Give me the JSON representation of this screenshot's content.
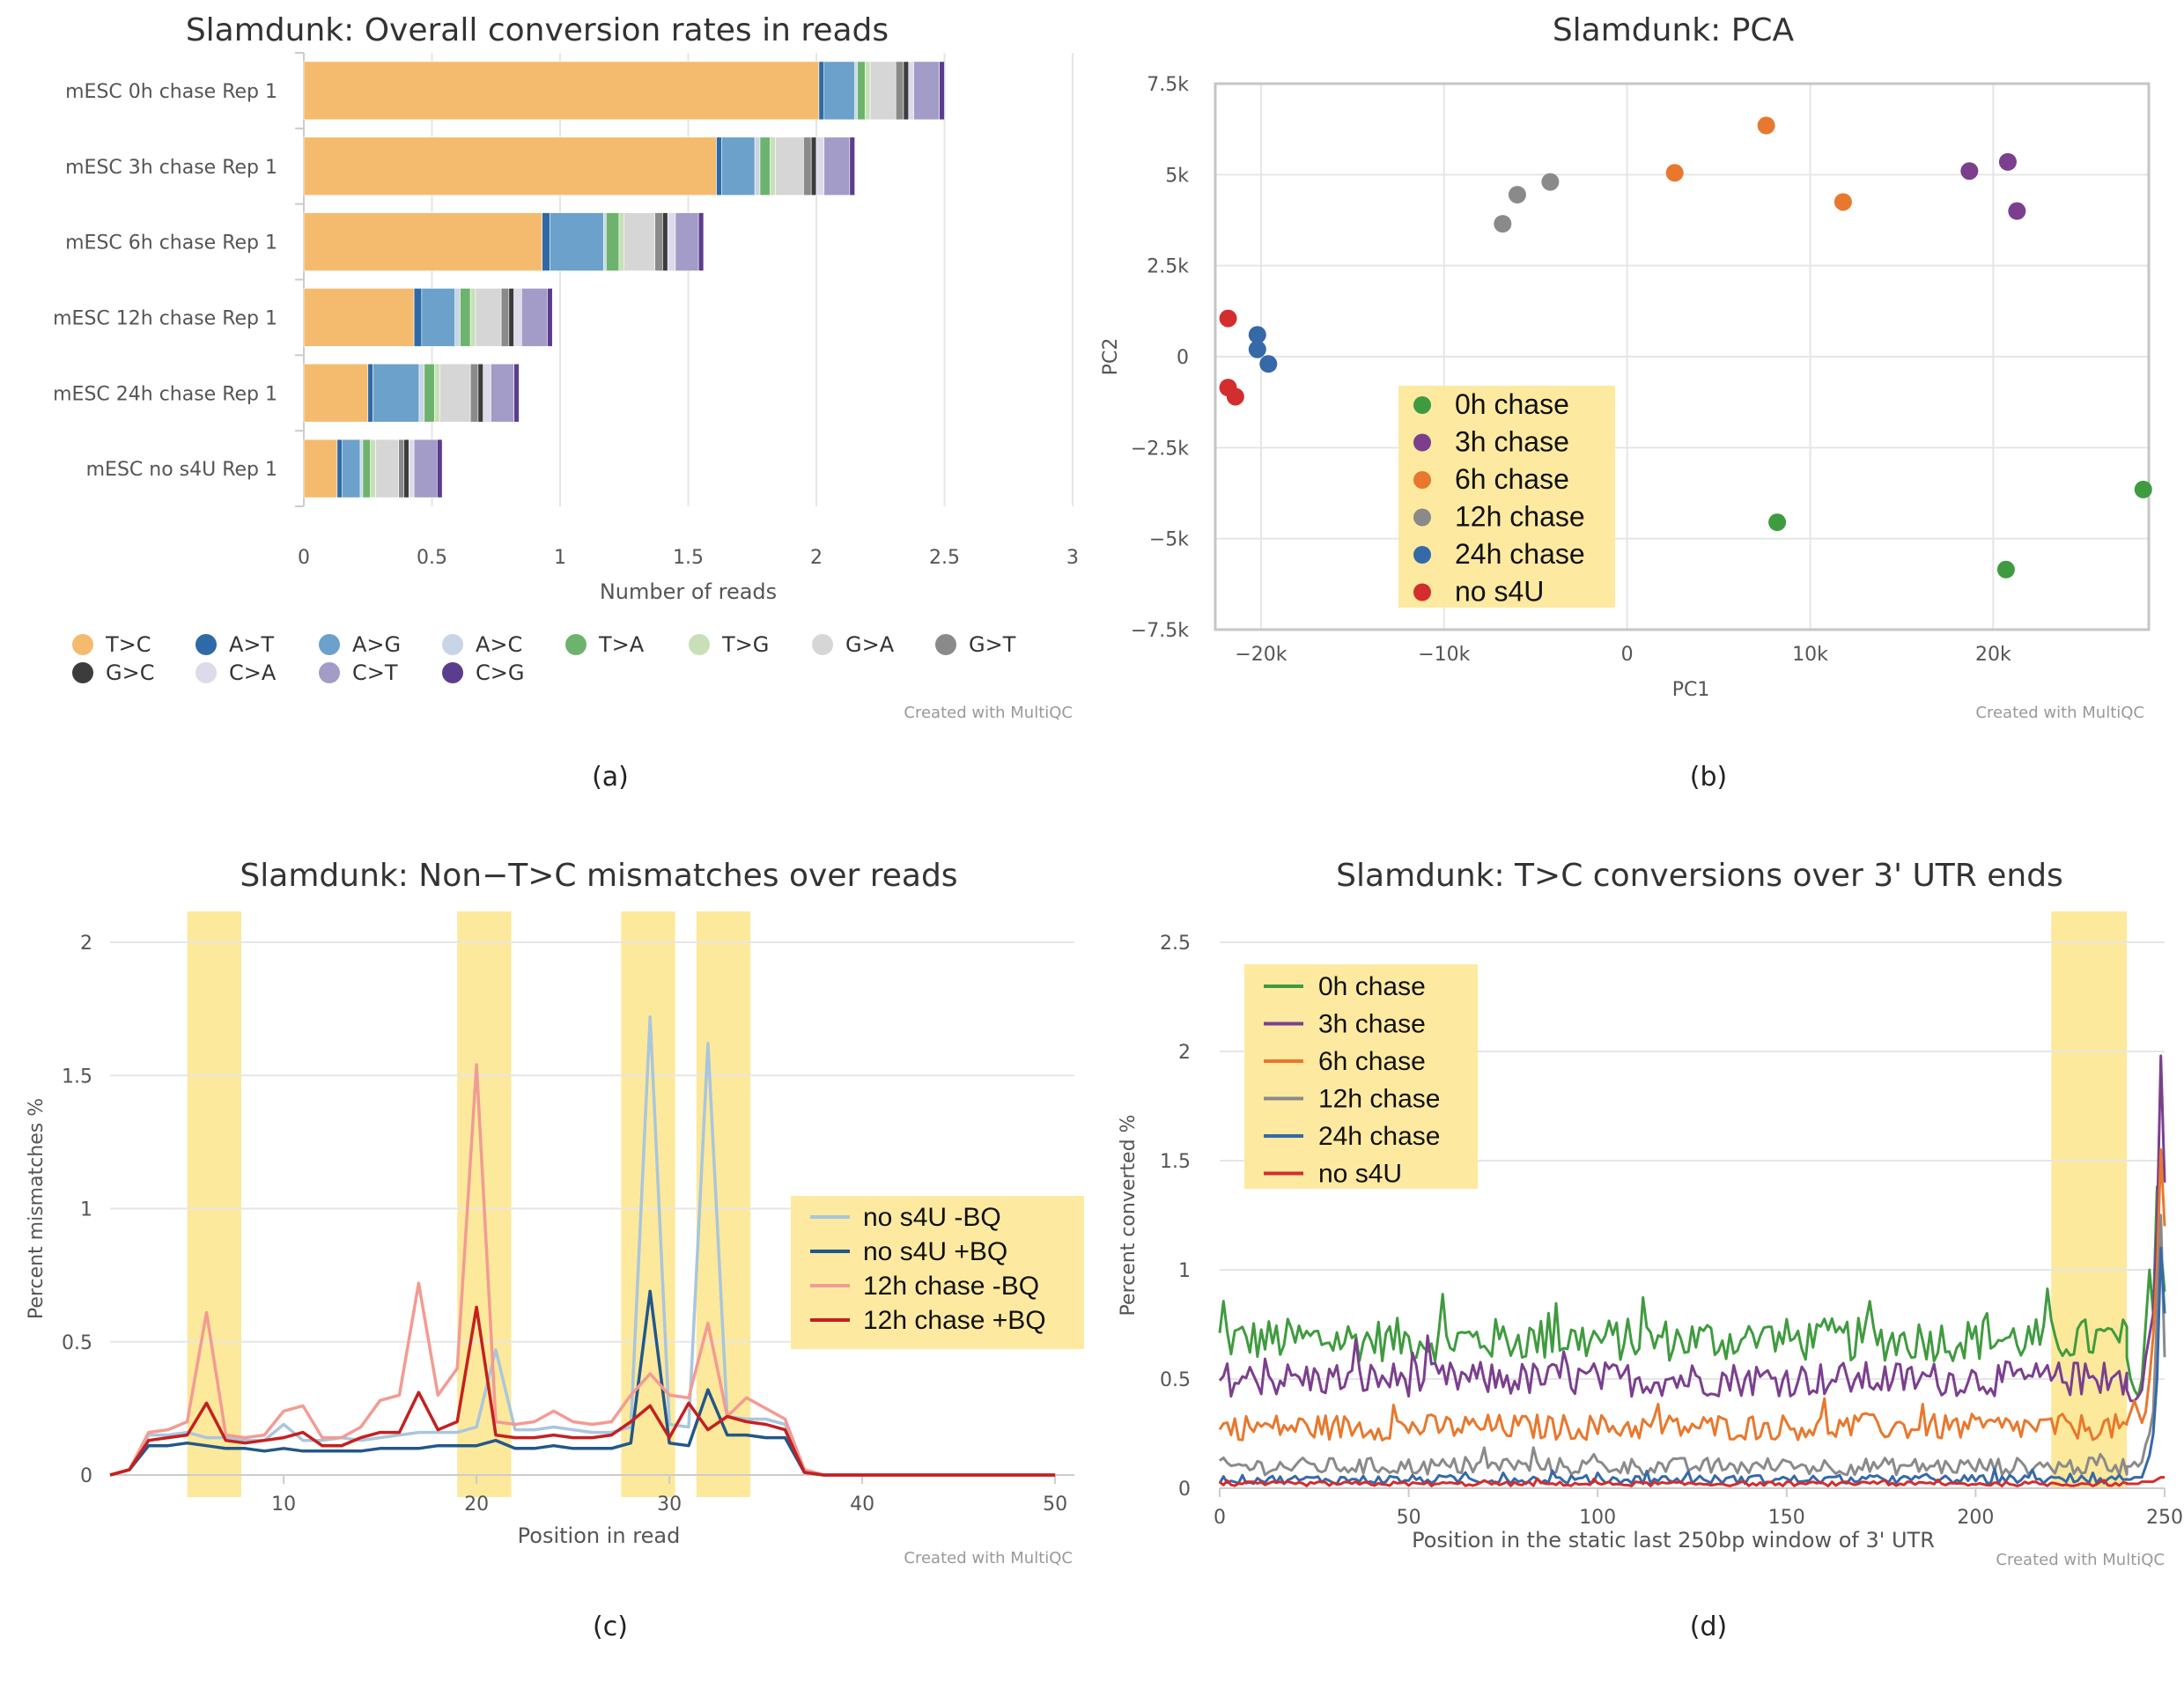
{
  "panels": [
    {
      "caption": "(a)"
    },
    {
      "caption": "(b)"
    },
    {
      "caption": "(c)"
    },
    {
      "caption": "(d)"
    }
  ],
  "chart_data": [
    {
      "id": "a",
      "type": "bar",
      "orientation": "horizontal",
      "stacked": true,
      "title": "Slamdunk: Overall conversion rates in reads",
      "xlabel": "Number of reads",
      "ylabel": "",
      "xlim": [
        0,
        3
      ],
      "xticks": [
        0,
        0.5,
        1,
        1.5,
        2,
        2.5,
        3
      ],
      "xtick_labels": [
        "0",
        "0.5",
        "1",
        "1.5",
        "2",
        "2.5",
        "3"
      ],
      "credit": "Created with MultiQC",
      "categories": [
        "mESC 0h chase Rep 1",
        "mESC 3h chase Rep 1",
        "mESC 6h chase Rep 1",
        "mESC 12h chase Rep 1",
        "mESC 24h chase Rep 1",
        "mESC no s4U Rep 1"
      ],
      "series": [
        {
          "name": "T>C",
          "color": "#f4bb6f",
          "values": [
            2.01,
            1.61,
            0.93,
            0.43,
            0.25,
            0.13
          ]
        },
        {
          "name": "A>T",
          "color": "#2e6aa6",
          "values": [
            0.02,
            0.02,
            0.03,
            0.03,
            0.02,
            0.02
          ]
        },
        {
          "name": "A>G",
          "color": "#6ba1ca",
          "values": [
            0.12,
            0.13,
            0.21,
            0.13,
            0.18,
            0.07
          ]
        },
        {
          "name": "A>C",
          "color": "#c8d5e6",
          "values": [
            0.01,
            0.02,
            0.01,
            0.02,
            0.02,
            0.01
          ]
        },
        {
          "name": "T>A",
          "color": "#6db36e",
          "values": [
            0.03,
            0.04,
            0.05,
            0.04,
            0.04,
            0.03
          ]
        },
        {
          "name": "T>G",
          "color": "#c7e0b7",
          "values": [
            0.02,
            0.02,
            0.02,
            0.02,
            0.02,
            0.02
          ]
        },
        {
          "name": "G>A",
          "color": "#d6d6d6",
          "values": [
            0.1,
            0.11,
            0.12,
            0.1,
            0.12,
            0.09
          ]
        },
        {
          "name": "G>T",
          "color": "#8a8a8a",
          "values": [
            0.03,
            0.03,
            0.03,
            0.03,
            0.03,
            0.02
          ]
        },
        {
          "name": "G>C",
          "color": "#3c3c3c",
          "values": [
            0.02,
            0.02,
            0.02,
            0.02,
            0.02,
            0.02
          ]
        },
        {
          "name": "C>A",
          "color": "#dcdbe9",
          "values": [
            0.02,
            0.03,
            0.03,
            0.03,
            0.03,
            0.02
          ]
        },
        {
          "name": "C>T",
          "color": "#a39bc8",
          "values": [
            0.1,
            0.1,
            0.09,
            0.1,
            0.09,
            0.09
          ]
        },
        {
          "name": "C>G",
          "color": "#5b3d8f",
          "values": [
            0.02,
            0.02,
            0.02,
            0.02,
            0.02,
            0.02
          ]
        }
      ]
    },
    {
      "id": "b",
      "type": "scatter",
      "title": "Slamdunk: PCA",
      "xlabel": "PC1",
      "ylabel": "PC2",
      "xlim": [
        -22500,
        28500
      ],
      "ylim": [
        -7500,
        7500
      ],
      "xticks": [
        -20000,
        -10000,
        0,
        10000,
        20000
      ],
      "xtick_labels": [
        "−20k",
        "−10k",
        "0",
        "10k",
        "20k"
      ],
      "yticks": [
        7500,
        5000,
        2500,
        0,
        -2500,
        -5000,
        -7500
      ],
      "ytick_labels": [
        "7.5k",
        "5k",
        "2.5k",
        "0",
        "−2.5k",
        "−5k",
        "−7.5k"
      ],
      "legend_position": "center-left",
      "credit": "Created with MultiQC",
      "series": [
        {
          "name": "0h chase",
          "color": "#3f9b3f",
          "points": [
            [
              8200,
              -4550
            ],
            [
              20700,
              -5850
            ],
            [
              28200,
              -3650
            ]
          ]
        },
        {
          "name": "3h chase",
          "color": "#7b3f8e",
          "points": [
            [
              18700,
              5100
            ],
            [
              20800,
              5350
            ],
            [
              21300,
              4000
            ]
          ]
        },
        {
          "name": "6h chase",
          "color": "#e8782d",
          "points": [
            [
              2600,
              5050
            ],
            [
              7600,
              6350
            ],
            [
              11800,
              4250
            ]
          ]
        },
        {
          "name": "12h chase",
          "color": "#8a8a8a",
          "points": [
            [
              -6800,
              3650
            ],
            [
              -6000,
              4450
            ],
            [
              -4200,
              4800
            ]
          ]
        },
        {
          "name": "24h chase",
          "color": "#3669a8",
          "points": [
            [
              -20200,
              600
            ],
            [
              -20200,
              200
            ],
            [
              -19600,
              -200
            ]
          ]
        },
        {
          "name": "no s4U",
          "color": "#d42d2d",
          "points": [
            [
              -21800,
              1050
            ],
            [
              -21800,
              -850
            ],
            [
              -21400,
              -1100
            ]
          ]
        }
      ]
    },
    {
      "id": "c",
      "type": "line",
      "title": "Slamdunk: Non−T>C mismatches over reads",
      "xlabel": "Position in read",
      "ylabel": "Percent mismatches %",
      "xlim": [
        1,
        51
      ],
      "ylim": [
        0,
        2
      ],
      "xticks": [
        10,
        20,
        30,
        40,
        50
      ],
      "xtick_labels": [
        "10",
        "20",
        "30",
        "40",
        "50"
      ],
      "yticks": [
        0,
        0.5,
        1,
        1.5,
        2
      ],
      "ytick_labels": [
        "0",
        "0.5",
        "1",
        "1.5",
        "2"
      ],
      "highlight_bands": [
        [
          5,
          7.8
        ],
        [
          19,
          21.8
        ],
        [
          27.5,
          30.3
        ],
        [
          31.4,
          34.2
        ]
      ],
      "legend_position": "center-right",
      "credit": "Created with MultiQC",
      "x": [
        1,
        2,
        3,
        4,
        5,
        6,
        7,
        8,
        9,
        10,
        11,
        12,
        13,
        14,
        15,
        16,
        17,
        18,
        19,
        20,
        21,
        22,
        23,
        24,
        25,
        26,
        27,
        28,
        29,
        30,
        31,
        32,
        33,
        34,
        35,
        36,
        37,
        38,
        39,
        40,
        41,
        42,
        43,
        44,
        45,
        46,
        47,
        48,
        49,
        50
      ],
      "series": [
        {
          "name": "no s4U -BQ",
          "color": "#a9c6dc",
          "values": [
            0,
            0.02,
            0.15,
            0.15,
            0.16,
            0.14,
            0.14,
            0.13,
            0.13,
            0.19,
            0.13,
            0.13,
            0.14,
            0.13,
            0.14,
            0.15,
            0.16,
            0.16,
            0.16,
            0.18,
            0.47,
            0.17,
            0.17,
            0.18,
            0.17,
            0.16,
            0.16,
            0.18,
            1.72,
            0.19,
            0.18,
            1.62,
            0.22,
            0.21,
            0.21,
            0.19,
            0.02,
            0,
            0,
            0,
            0,
            0,
            0,
            0,
            0,
            0,
            0,
            0,
            0,
            0
          ]
        },
        {
          "name": "no s4U +BQ",
          "color": "#22578a",
          "values": [
            0,
            0.02,
            0.11,
            0.11,
            0.12,
            0.11,
            0.1,
            0.1,
            0.09,
            0.1,
            0.09,
            0.09,
            0.09,
            0.09,
            0.1,
            0.1,
            0.1,
            0.11,
            0.11,
            0.11,
            0.13,
            0.1,
            0.1,
            0.11,
            0.1,
            0.1,
            0.1,
            0.12,
            0.69,
            0.12,
            0.11,
            0.32,
            0.15,
            0.15,
            0.14,
            0.14,
            0.01,
            0,
            0,
            0,
            0,
            0,
            0,
            0,
            0,
            0,
            0,
            0,
            0,
            0
          ]
        },
        {
          "name": "12h chase -BQ",
          "color": "#f29b94",
          "values": [
            0,
            0.02,
            0.16,
            0.17,
            0.2,
            0.61,
            0.15,
            0.14,
            0.15,
            0.24,
            0.26,
            0.14,
            0.14,
            0.18,
            0.28,
            0.3,
            0.72,
            0.3,
            0.4,
            1.54,
            0.2,
            0.19,
            0.2,
            0.24,
            0.2,
            0.19,
            0.2,
            0.3,
            0.38,
            0.3,
            0.29,
            0.57,
            0.22,
            0.29,
            0.25,
            0.21,
            0.02,
            0,
            0,
            0,
            0,
            0,
            0,
            0,
            0,
            0,
            0,
            0,
            0,
            0
          ]
        },
        {
          "name": "12h chase +BQ",
          "color": "#c42020",
          "values": [
            0,
            0.02,
            0.13,
            0.14,
            0.15,
            0.27,
            0.13,
            0.12,
            0.13,
            0.14,
            0.16,
            0.11,
            0.11,
            0.14,
            0.16,
            0.16,
            0.31,
            0.17,
            0.2,
            0.63,
            0.15,
            0.14,
            0.14,
            0.15,
            0.14,
            0.14,
            0.15,
            0.2,
            0.26,
            0.14,
            0.27,
            0.17,
            0.22,
            0.2,
            0.19,
            0.17,
            0.01,
            0,
            0,
            0,
            0,
            0,
            0,
            0,
            0,
            0,
            0,
            0,
            0,
            0
          ]
        }
      ]
    },
    {
      "id": "d",
      "type": "line",
      "title": "Slamdunk: T>C conversions over 3' UTR ends",
      "xlabel": "Position in the static last 250bp window of 3' UTR",
      "ylabel": "Percent converted %",
      "xlim": [
        0,
        250
      ],
      "ylim": [
        0,
        2.5
      ],
      "xticks": [
        0,
        50,
        100,
        150,
        200,
        250
      ],
      "xtick_labels": [
        "0",
        "50",
        "100",
        "150",
        "200",
        "250"
      ],
      "yticks": [
        0,
        0.5,
        1,
        1.5,
        2,
        2.5
      ],
      "ytick_labels": [
        "0",
        "0.5",
        "1",
        "1.5",
        "2",
        "2.5"
      ],
      "highlight_bands": [
        [
          220,
          240
        ]
      ],
      "legend_position": "top-left",
      "credit": "Created with MultiQC",
      "series": [
        {
          "name": "0h chase",
          "color": "#3f9b3f",
          "baseline": 0.68,
          "noise": 0.1,
          "end_values": [
            0.6,
            0.5,
            0.45,
            0.42,
            0.5,
            0.75,
            1.0,
            0.8,
            1.38,
            1.1,
            0.9
          ]
        },
        {
          "name": "3h chase",
          "color": "#7b3f8e",
          "baseline": 0.5,
          "noise": 0.08,
          "end_values": [
            0.45,
            0.4,
            0.4,
            0.42,
            0.45,
            0.6,
            0.7,
            0.8,
            1.2,
            1.98,
            1.4
          ]
        },
        {
          "name": "6h chase",
          "color": "#e8782d",
          "baseline": 0.28,
          "noise": 0.06,
          "end_values": [
            0.3,
            0.35,
            0.4,
            0.35,
            0.3,
            0.35,
            0.5,
            0.7,
            1.0,
            1.55,
            1.2
          ]
        },
        {
          "name": "12h chase",
          "color": "#8a8a8a",
          "baseline": 0.1,
          "noise": 0.04,
          "end_values": [
            0.1,
            0.1,
            0.12,
            0.1,
            0.12,
            0.2,
            0.25,
            0.35,
            0.8,
            1.25,
            0.6
          ]
        },
        {
          "name": "24h chase",
          "color": "#3669a8",
          "baseline": 0.04,
          "noise": 0.02,
          "end_values": [
            0.04,
            0.04,
            0.05,
            0.05,
            0.05,
            0.1,
            0.15,
            0.25,
            0.5,
            1.1,
            0.8
          ]
        },
        {
          "name": "no s4U",
          "color": "#d42d2d",
          "baseline": 0.02,
          "noise": 0.01,
          "end_values": [
            0.02,
            0.02,
            0.02,
            0.02,
            0.03,
            0.03,
            0.03,
            0.03,
            0.04,
            0.05,
            0.05
          ]
        }
      ]
    }
  ]
}
